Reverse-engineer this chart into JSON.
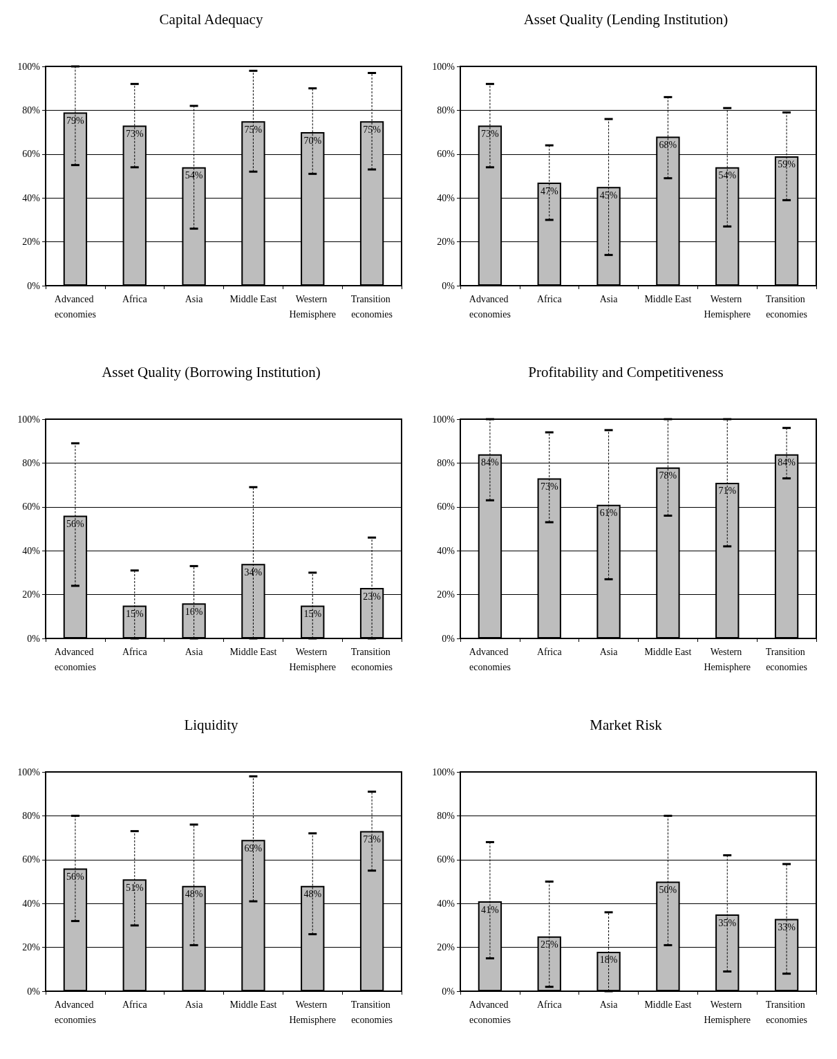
{
  "chart_data": [
    {
      "type": "bar",
      "title": "Capital Adequacy",
      "categories": [
        "Advanced economies",
        "Africa",
        "Asia",
        "Middle East",
        "Western Hemisphere",
        "Transition economies"
      ],
      "values": [
        79,
        73,
        54,
        75,
        70,
        75
      ],
      "value_labels": [
        "79%",
        "73%",
        "54%",
        "75%",
        "70%",
        "75%"
      ],
      "errors": [
        [
          55,
          100
        ],
        [
          54,
          92
        ],
        [
          26,
          82
        ],
        [
          52,
          98
        ],
        [
          51,
          90
        ],
        [
          53,
          97
        ]
      ],
      "color": "#bdbdbd",
      "ylim": [
        0,
        100
      ],
      "yticks": [
        {
          "value": 0,
          "label": "0%"
        },
        {
          "value": 20,
          "label": "20%"
        },
        {
          "value": 40,
          "label": "40%"
        },
        {
          "value": 60,
          "label": "60%"
        },
        {
          "value": 80,
          "label": "80%"
        },
        {
          "value": 100,
          "label": "100%"
        }
      ],
      "grid": "y"
    },
    {
      "type": "bar",
      "title": "Asset Quality (Lending Institution)",
      "categories": [
        "Advanced economies",
        "Africa",
        "Asia",
        "Middle East",
        "Western Hemisphere",
        "Transition economies"
      ],
      "values": [
        73,
        47,
        45,
        68,
        54,
        59
      ],
      "value_labels": [
        "73%",
        "47%",
        "45%",
        "68%",
        "54%",
        "59%"
      ],
      "errors": [
        [
          54,
          92
        ],
        [
          30,
          64
        ],
        [
          14,
          76
        ],
        [
          49,
          86
        ],
        [
          27,
          81
        ],
        [
          39,
          79
        ]
      ],
      "color": "#bdbdbd",
      "ylim": [
        0,
        100
      ],
      "yticks": [
        {
          "value": 0,
          "label": "0%"
        },
        {
          "value": 20,
          "label": "20%"
        },
        {
          "value": 40,
          "label": "40%"
        },
        {
          "value": 60,
          "label": "60%"
        },
        {
          "value": 80,
          "label": "80%"
        },
        {
          "value": 100,
          "label": "100%"
        }
      ],
      "grid": "y"
    },
    {
      "type": "bar",
      "title": "Asset Quality (Borrowing Institution)",
      "categories": [
        "Advanced economies",
        "Africa",
        "Asia",
        "Middle East",
        "Western Hemisphere",
        "Transition economies"
      ],
      "values": [
        56,
        15,
        16,
        34,
        15,
        23
      ],
      "value_labels": [
        "56%",
        "15%",
        "16%",
        "34%",
        "15%",
        "23%"
      ],
      "errors": [
        [
          24,
          89
        ],
        [
          0,
          31
        ],
        [
          0,
          33
        ],
        [
          0,
          69
        ],
        [
          0,
          30
        ],
        [
          0,
          46
        ]
      ],
      "color": "#bdbdbd",
      "ylim": [
        0,
        100
      ],
      "yticks": [
        {
          "value": 0,
          "label": "0%"
        },
        {
          "value": 20,
          "label": "20%"
        },
        {
          "value": 40,
          "label": "40%"
        },
        {
          "value": 60,
          "label": "60%"
        },
        {
          "value": 80,
          "label": "80%"
        },
        {
          "value": 100,
          "label": "100%"
        }
      ],
      "grid": "y"
    },
    {
      "type": "bar",
      "title": "Profitability and Competitiveness",
      "categories": [
        "Advanced economies",
        "Africa",
        "Asia",
        "Middle East",
        "Western Hemisphere",
        "Transition economies"
      ],
      "values": [
        84,
        73,
        61,
        78,
        71,
        84
      ],
      "value_labels": [
        "84%",
        "73%",
        "61%",
        "78%",
        "71%",
        "84%"
      ],
      "errors": [
        [
          63,
          100
        ],
        [
          53,
          94
        ],
        [
          27,
          95
        ],
        [
          56,
          100
        ],
        [
          42,
          100
        ],
        [
          73,
          96
        ]
      ],
      "color": "#bdbdbd",
      "ylim": [
        0,
        100
      ],
      "yticks": [
        {
          "value": 0,
          "label": "0%"
        },
        {
          "value": 20,
          "label": "20%"
        },
        {
          "value": 40,
          "label": "40%"
        },
        {
          "value": 60,
          "label": "60%"
        },
        {
          "value": 80,
          "label": "80%"
        },
        {
          "value": 100,
          "label": "100%"
        }
      ],
      "grid": "y"
    },
    {
      "type": "bar",
      "title": "Liquidity",
      "categories": [
        "Advanced economies",
        "Africa",
        "Asia",
        "Middle East",
        "Western Hemisphere",
        "Transition economies"
      ],
      "values": [
        56,
        51,
        48,
        69,
        48,
        73
      ],
      "value_labels": [
        "56%",
        "51%",
        "48%",
        "69%",
        "48%",
        "73%"
      ],
      "errors": [
        [
          32,
          80
        ],
        [
          30,
          73
        ],
        [
          21,
          76
        ],
        [
          41,
          98
        ],
        [
          26,
          72
        ],
        [
          55,
          91
        ]
      ],
      "color": "#bdbdbd",
      "ylim": [
        0,
        100
      ],
      "yticks": [
        {
          "value": 0,
          "label": "0%"
        },
        {
          "value": 20,
          "label": "20%"
        },
        {
          "value": 40,
          "label": "40%"
        },
        {
          "value": 60,
          "label": "60%"
        },
        {
          "value": 80,
          "label": "80%"
        },
        {
          "value": 100,
          "label": "100%"
        }
      ],
      "grid": "y"
    },
    {
      "type": "bar",
      "title": "Market Risk",
      "categories": [
        "Advanced economies",
        "Africa",
        "Asia",
        "Middle East",
        "Western Hemisphere",
        "Transition economies"
      ],
      "values": [
        41,
        25,
        18,
        50,
        35,
        33
      ],
      "value_labels": [
        "41%",
        "25%",
        "18%",
        "50%",
        "35%",
        "33%"
      ],
      "errors": [
        [
          15,
          68
        ],
        [
          2,
          50
        ],
        [
          0,
          36
        ],
        [
          21,
          80
        ],
        [
          9,
          62
        ],
        [
          8,
          58
        ]
      ],
      "color": "#bdbdbd",
      "ylim": [
        0,
        100
      ],
      "yticks": [
        {
          "value": 0,
          "label": "0%"
        },
        {
          "value": 20,
          "label": "20%"
        },
        {
          "value": 40,
          "label": "40%"
        },
        {
          "value": 60,
          "label": "60%"
        },
        {
          "value": 80,
          "label": "80%"
        },
        {
          "value": 100,
          "label": "100%"
        }
      ],
      "grid": "y"
    }
  ]
}
